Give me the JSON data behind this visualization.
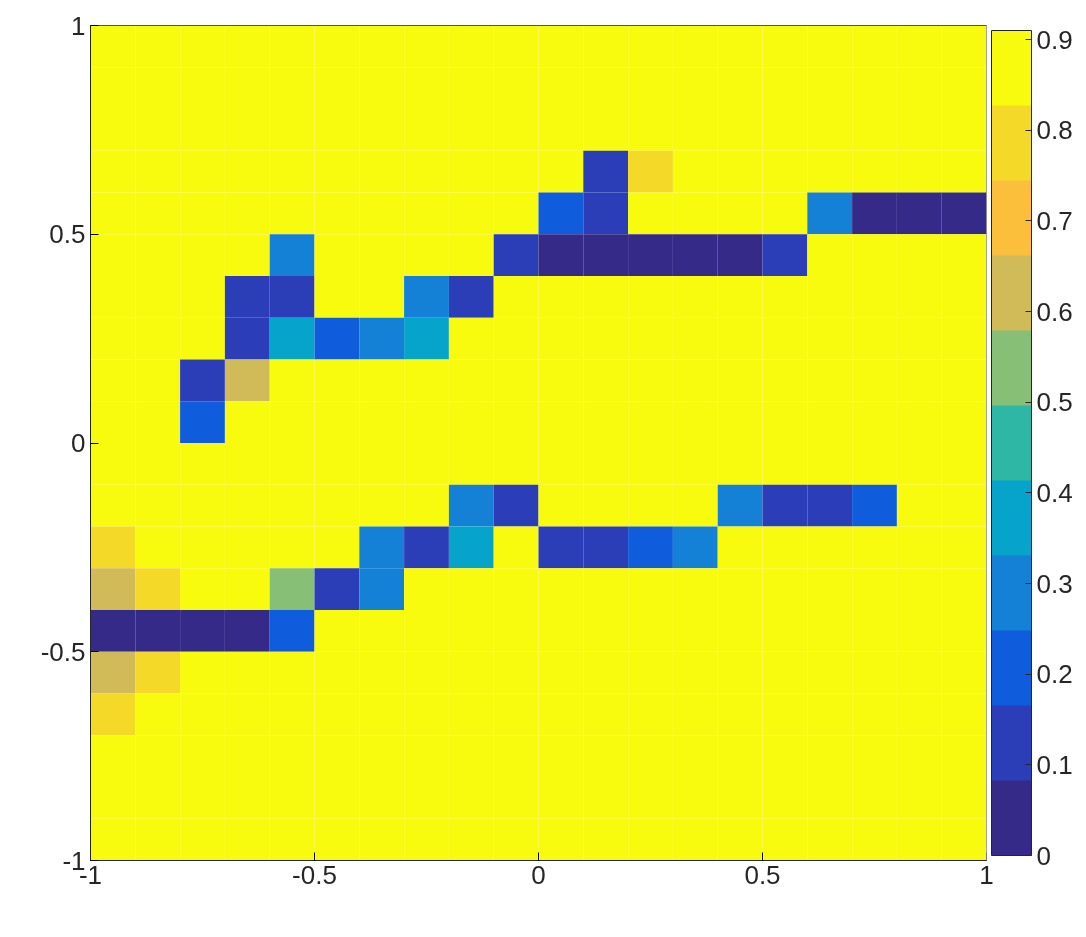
{
  "chart_data": {
    "type": "heatmap",
    "xlim": [
      -1,
      1
    ],
    "ylim": [
      -1,
      1
    ],
    "xticks": [
      -1,
      -0.5,
      0,
      0.5,
      1
    ],
    "yticks": [
      -1,
      -0.5,
      0,
      0.5,
      1
    ],
    "clim": [
      0,
      0.91
    ],
    "cticks": [
      0,
      0.1,
      0.2,
      0.3,
      0.4,
      0.5,
      0.6,
      0.7,
      0.8,
      0.9
    ],
    "cells": [
      [
        0.9,
        0.9,
        0.9,
        0.9,
        0.9,
        0.9,
        0.9,
        0.9,
        0.9,
        0.9,
        0.9,
        0.9,
        0.9,
        0.9,
        0.9,
        0.9,
        0.9,
        0.9,
        0.9,
        0.9
      ],
      [
        0.9,
        0.9,
        0.9,
        0.9,
        0.9,
        0.9,
        0.9,
        0.9,
        0.9,
        0.9,
        0.9,
        0.9,
        0.9,
        0.9,
        0.9,
        0.9,
        0.9,
        0.9,
        0.9,
        0.9
      ],
      [
        0.9,
        0.9,
        0.9,
        0.9,
        0.9,
        0.9,
        0.9,
        0.9,
        0.9,
        0.9,
        0.9,
        0.9,
        0.9,
        0.9,
        0.9,
        0.9,
        0.9,
        0.9,
        0.9,
        0.9
      ],
      [
        0.9,
        0.9,
        0.9,
        0.9,
        0.9,
        0.9,
        0.9,
        0.9,
        0.9,
        0.9,
        0.9,
        0.1,
        0.8,
        0.9,
        0.9,
        0.9,
        0.9,
        0.9,
        0.9,
        0.85
      ],
      [
        0.9,
        0.9,
        0.9,
        0.9,
        0.9,
        0.9,
        0.9,
        0.9,
        0.9,
        0.9,
        0.2,
        0.1,
        0.9,
        0.9,
        0.9,
        0.9,
        0.3,
        0,
        0,
        0
      ],
      [
        0.9,
        0.9,
        0.9,
        0.9,
        0.3,
        0.9,
        0.9,
        0.9,
        0.9,
        0.1,
        0,
        0,
        0,
        0,
        0,
        0.1,
        0.9,
        0.9,
        0.9,
        0.85
      ],
      [
        0.9,
        0.9,
        0.9,
        0.1,
        0.1,
        0.9,
        0.9,
        0.3,
        0.1,
        0.9,
        0.9,
        0.9,
        0.9,
        0.9,
        0.9,
        0.9,
        0.9,
        0.9,
        0.9,
        0.9
      ],
      [
        0.9,
        0.9,
        0.9,
        0.1,
        0.4,
        0.2,
        0.3,
        0.4,
        0.9,
        0.9,
        0.9,
        0.9,
        0.9,
        0.9,
        0.9,
        0.9,
        0.9,
        0.9,
        0.9,
        0.9
      ],
      [
        0.9,
        0.9,
        0.1,
        0.6,
        0.9,
        0.9,
        0.9,
        0.9,
        0.9,
        0.9,
        0.9,
        0.9,
        0.9,
        0.9,
        0.9,
        0.9,
        0.9,
        0.9,
        0.9,
        0.9
      ],
      [
        0.9,
        0.9,
        0.2,
        0.9,
        0.9,
        0.9,
        0.9,
        0.9,
        0.9,
        0.9,
        0.9,
        0.9,
        0.9,
        0.9,
        0.9,
        0.9,
        0.9,
        0.9,
        0.9,
        0.9
      ],
      [
        0.9,
        0.9,
        0.9,
        0.9,
        0.9,
        0.9,
        0.9,
        0.9,
        0.9,
        0.9,
        0.9,
        0.9,
        0.9,
        0.9,
        0.9,
        0.9,
        0.9,
        0.9,
        0.9,
        0.9
      ],
      [
        0.85,
        0.9,
        0.9,
        0.9,
        0.9,
        0.9,
        0.9,
        0.9,
        0.3,
        0.1,
        0.9,
        0.9,
        0.9,
        0.9,
        0.3,
        0.1,
        0.1,
        0.2,
        0.9,
        0.9
      ],
      [
        0.8,
        0.85,
        0.9,
        0.9,
        0.9,
        0.9,
        0.3,
        0.1,
        0.4,
        0.9,
        0.1,
        0.1,
        0.2,
        0.3,
        0.9,
        0.9,
        0.9,
        0.9,
        0.9,
        0.9
      ],
      [
        0.6,
        0.8,
        0.9,
        0.9,
        0.5,
        0.1,
        0.3,
        0.9,
        0.9,
        0.9,
        0.9,
        0.9,
        0.9,
        0.9,
        0.9,
        0.9,
        0.9,
        0.9,
        0.9,
        0.9
      ],
      [
        0,
        0,
        0,
        0,
        0.2,
        0.9,
        0.9,
        0.9,
        0.9,
        0.9,
        0.9,
        0.9,
        0.9,
        0.9,
        0.9,
        0.9,
        0.9,
        0.9,
        0.9,
        0.9
      ],
      [
        0.6,
        0.8,
        0.9,
        0.9,
        0.9,
        0.9,
        0.9,
        0.9,
        0.9,
        0.9,
        0.9,
        0.9,
        0.9,
        0.9,
        0.9,
        0.9,
        0.9,
        0.9,
        0.9,
        0.9
      ],
      [
        0.8,
        0.85,
        0.9,
        0.9,
        0.9,
        0.9,
        0.9,
        0.9,
        0.9,
        0.9,
        0.9,
        0.9,
        0.9,
        0.9,
        0.9,
        0.9,
        0.9,
        0.9,
        0.9,
        0.9
      ],
      [
        0.9,
        0.9,
        0.9,
        0.9,
        0.9,
        0.9,
        0.9,
        0.9,
        0.9,
        0.9,
        0.9,
        0.9,
        0.9,
        0.9,
        0.9,
        0.9,
        0.9,
        0.9,
        0.9,
        0.9
      ],
      [
        0.9,
        0.9,
        0.9,
        0.9,
        0.9,
        0.9,
        0.9,
        0.9,
        0.9,
        0.9,
        0.9,
        0.9,
        0.9,
        0.9,
        0.9,
        0.9,
        0.9,
        0.9,
        0.9,
        0.9
      ],
      [
        0.9,
        0.9,
        0.9,
        0.9,
        0.9,
        0.9,
        0.9,
        0.9,
        0.9,
        0.9,
        0.9,
        0.9,
        0.9,
        0.9,
        0.9,
        0.9,
        0.9,
        0.9,
        0.9,
        0.9
      ]
    ]
  }
}
